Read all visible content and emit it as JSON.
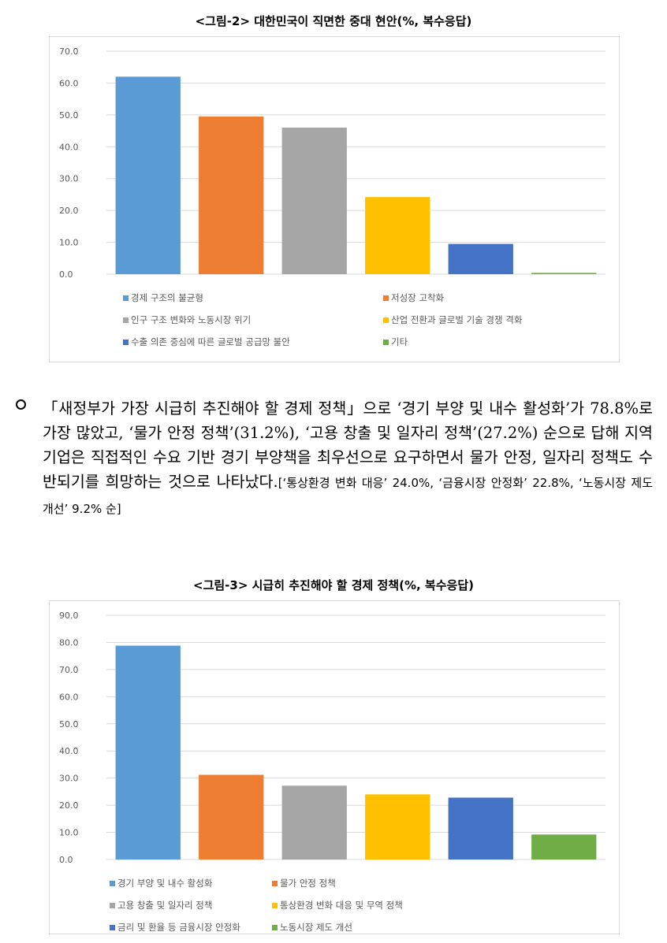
{
  "figure2": {
    "title": "<그림-2> 대한민국이 직면한 중대 현안(%, 복수응답)"
  },
  "figure3": {
    "title": "<그림-3> 시급히 추진해야 할 경제 정책(%, 복수응답)"
  },
  "paragraph": {
    "text": "「새정부가 가장 시급히 추진해야 할 경제 정책」으로 ‘경기 부양 및 내수 활성화’가 78.8%로 가장 많았고, ‘물가 안정 정책’(31.2%), ‘고용 창출 및 일자리 정책’(27.2%) 순으로 답해 지역 기업은 직접적인 수요 기반 경기 부양책을 최우선으로 요구하면서 물가 안정, 일자리 정책도 수반되기를 희망하는 것으로 나타났다.",
    "note": "[‘통상환경 변화 대응’ 24.0%, ‘금융시장 안정화’ 22.8%, ‘노동시장 제도 개선’ 9.2% 순]"
  },
  "chart_data": [
    {
      "type": "bar",
      "title": "<그림-2> 대한민국이 직면한 중대 현안(%, 복수응답)",
      "ylim": [
        0,
        70
      ],
      "yticks": [
        "0.0",
        "10.0",
        "20.0",
        "30.0",
        "40.0",
        "50.0",
        "60.0",
        "70.0"
      ],
      "grid": true,
      "legend_position": "bottom",
      "series": [
        {
          "name": "경제 구조의 불균형",
          "value": 62.0,
          "color": "#5b9bd5"
        },
        {
          "name": "저성장 고착화",
          "value": 49.5,
          "color": "#ed7d31"
        },
        {
          "name": "인구 구조 변화와 노동시장 위기",
          "value": 46.0,
          "color": "#a5a5a5"
        },
        {
          "name": "산업 전환과 글로벌 기술 경쟁 격화",
          "value": 24.2,
          "color": "#ffc000"
        },
        {
          "name": "수출 의존 중심에 따른 글로벌 공급망 불안",
          "value": 9.5,
          "color": "#4472c4"
        },
        {
          "name": "기타",
          "value": 0.4,
          "color": "#70ad47"
        }
      ]
    },
    {
      "type": "bar",
      "title": "<그림-3> 시급히 추진해야 할 경제 정책(%, 복수응답)",
      "ylim": [
        0,
        90
      ],
      "yticks": [
        "0.0",
        "10.0",
        "20.0",
        "30.0",
        "40.0",
        "50.0",
        "60.0",
        "70.0",
        "80.0",
        "90.0"
      ],
      "grid": true,
      "legend_position": "bottom",
      "series": [
        {
          "name": "경기 부양 및 내수 활성화",
          "value": 78.8,
          "color": "#5b9bd5"
        },
        {
          "name": "물가 안정 정책",
          "value": 31.2,
          "color": "#ed7d31"
        },
        {
          "name": "고용 창출 및 일자리 정책",
          "value": 27.2,
          "color": "#a5a5a5"
        },
        {
          "name": "통상환경 변화 대응 및 무역 정책",
          "value": 24.0,
          "color": "#ffc000"
        },
        {
          "name": "금리 및 환율 등 금융시장 안정화",
          "value": 22.8,
          "color": "#4472c4"
        },
        {
          "name": "노동시장 제도 개선",
          "value": 9.2,
          "color": "#70ad47"
        }
      ]
    }
  ]
}
